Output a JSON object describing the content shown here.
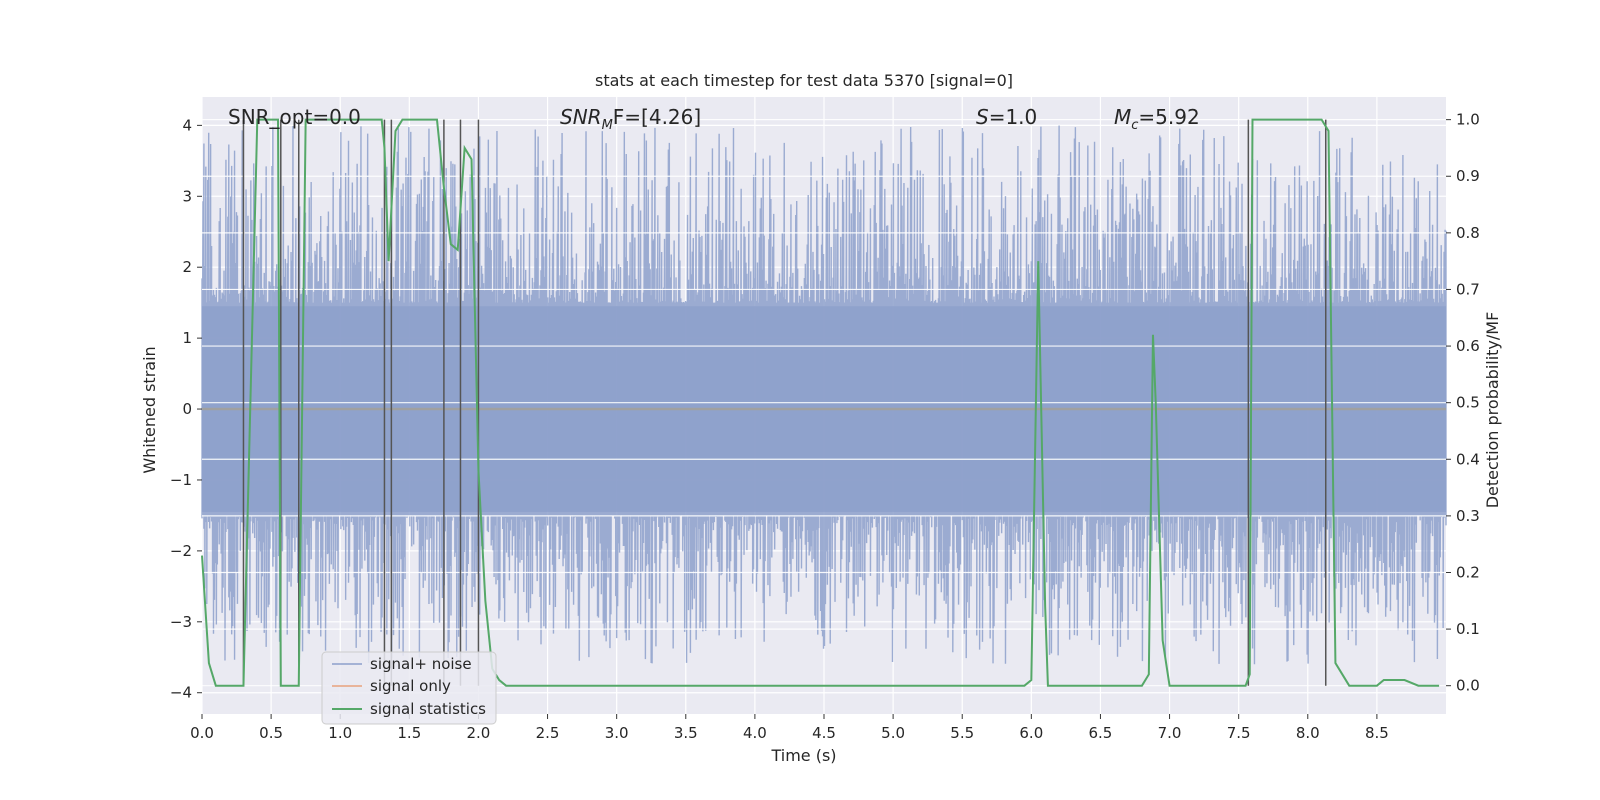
{
  "chart_data": {
    "type": "line",
    "title": "stats at each timestep for test data 5370 [signal=0]",
    "xlabel": "Time (s)",
    "ylabel": "Whitened strain",
    "ylabel_right": "Detection probability/MF",
    "xlim": [
      0,
      9.0
    ],
    "ylim": [
      -4.3,
      4.4
    ],
    "ylim_right": [
      -0.05,
      1.04
    ],
    "x_ticks": [
      0.0,
      0.5,
      1.0,
      1.5,
      2.0,
      2.5,
      3.0,
      3.5,
      4.0,
      4.5,
      5.0,
      5.5,
      6.0,
      6.5,
      7.0,
      7.5,
      8.0,
      8.5
    ],
    "x_tick_labels": [
      "0.0",
      "0.5",
      "1.0",
      "1.5",
      "2.0",
      "2.5",
      "3.0",
      "3.5",
      "4.0",
      "4.5",
      "5.0",
      "5.5",
      "6.0",
      "6.5",
      "7.0",
      "7.5",
      "8.0",
      "8.5"
    ],
    "y_ticks": [
      -4,
      -3,
      -2,
      -1,
      0,
      1,
      2,
      3,
      4
    ],
    "y_tick_labels": [
      "−4",
      "−3",
      "−2",
      "−1",
      "0",
      "1",
      "2",
      "3",
      "4"
    ],
    "y_right_ticks": [
      0.0,
      0.1,
      0.2,
      0.3,
      0.4,
      0.5,
      0.6,
      0.7,
      0.8,
      0.9,
      1.0
    ],
    "y_right_tick_labels": [
      "0.0",
      "0.1",
      "0.2",
      "0.3",
      "0.4",
      "0.5",
      "0.6",
      "0.7",
      "0.8",
      "0.9",
      "1.0"
    ],
    "grid": true,
    "legend_position": "lower-left",
    "annotations": {
      "snr_opt": "SNR_opt=0.0",
      "snr_mf_sym": "SNR",
      "snr_mf_sub": "M",
      "snr_mf_rest": "F=[4.26]",
      "s_sym": "S",
      "s_rest": "=1.0",
      "mc_sym": "M",
      "mc_sub": "c",
      "mc_rest": "=5.92"
    },
    "series": [
      {
        "name": "signal+ noise",
        "color": "#8da0cb",
        "note_noise_envelope": [
          -4.0,
          4.0
        ]
      },
      {
        "name": "signal only",
        "color": "#e8a27c",
        "y_constant": 0.0
      },
      {
        "name": "signal statistics",
        "color": "#55a868",
        "axis": "right",
        "x": [
          0.0,
          0.05,
          0.1,
          0.15,
          0.2,
          0.25,
          0.3,
          0.35,
          0.4,
          0.45,
          0.5,
          0.55,
          0.57,
          0.6,
          0.65,
          0.7,
          0.75,
          0.8,
          0.9,
          1.0,
          1.1,
          1.2,
          1.3,
          1.32,
          1.35,
          1.4,
          1.45,
          1.5,
          1.6,
          1.7,
          1.75,
          1.8,
          1.85,
          1.9,
          1.95,
          2.0,
          2.05,
          2.1,
          2.15,
          2.2,
          2.3,
          3.0,
          4.0,
          5.0,
          5.5,
          5.95,
          6.0,
          6.05,
          6.1,
          6.12,
          6.15,
          6.2,
          6.5,
          6.75,
          6.8,
          6.85,
          6.88,
          6.9,
          6.95,
          7.0,
          7.5,
          7.55,
          7.58,
          7.6,
          7.65,
          7.7,
          8.0,
          8.05,
          8.1,
          8.15,
          8.2,
          8.3,
          8.4,
          8.45,
          8.5,
          8.55,
          8.6,
          8.7,
          8.8,
          8.9,
          8.95
        ],
        "values": [
          0.23,
          0.04,
          0.0,
          0.0,
          0.0,
          0.0,
          0.0,
          0.5,
          1.0,
          1.0,
          1.0,
          1.0,
          0.0,
          0.0,
          0.0,
          0.0,
          1.0,
          1.0,
          1.0,
          1.0,
          1.0,
          1.0,
          1.0,
          0.95,
          0.75,
          0.98,
          1.0,
          1.0,
          1.0,
          1.0,
          0.88,
          0.78,
          0.77,
          0.95,
          0.93,
          0.38,
          0.15,
          0.03,
          0.01,
          0.0,
          0.0,
          0.0,
          0.0,
          0.0,
          0.0,
          0.0,
          0.01,
          0.75,
          0.14,
          0.0,
          0.0,
          0.0,
          0.0,
          0.0,
          0.0,
          0.02,
          0.62,
          0.5,
          0.08,
          0.0,
          0.0,
          0.0,
          0.02,
          1.0,
          1.0,
          1.0,
          1.0,
          1.0,
          1.0,
          0.98,
          0.04,
          0.0,
          0.0,
          0.0,
          0.0,
          0.01,
          0.01,
          0.01,
          0.0,
          0.0,
          0.0
        ]
      }
    ],
    "vertical_markers_x": [
      0.3,
      0.57,
      0.7,
      1.32,
      1.37,
      1.75,
      1.87,
      2.0,
      7.57,
      8.13
    ]
  }
}
